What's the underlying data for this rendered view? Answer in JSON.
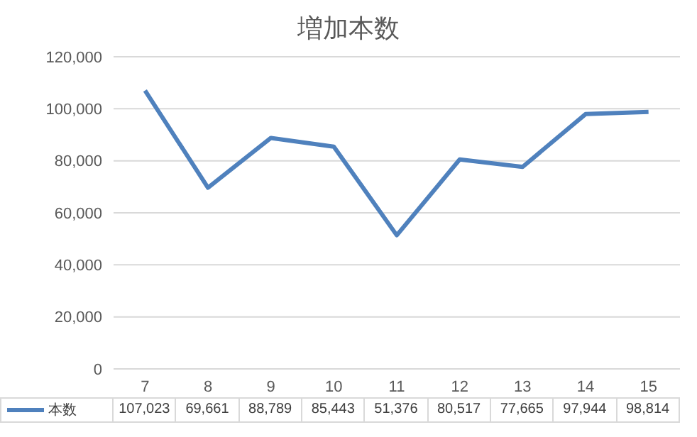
{
  "chart_data": {
    "type": "line",
    "title": "増加本数",
    "categories": [
      "7",
      "8",
      "9",
      "10",
      "11",
      "12",
      "13",
      "14",
      "15"
    ],
    "series": [
      {
        "name": "本数",
        "color": "#4f81bd",
        "values": [
          107023,
          69661,
          88789,
          85443,
          51376,
          80517,
          77665,
          97944,
          98814
        ],
        "value_labels": [
          "107,023",
          "69,661",
          "88,789",
          "85,443",
          "51,376",
          "80,517",
          "77,665",
          "97,944",
          "98,814"
        ]
      }
    ],
    "ylim": [
      0,
      120000
    ],
    "yticks": [
      {
        "value": 0,
        "label": "0"
      },
      {
        "value": 20000,
        "label": "20,000"
      },
      {
        "value": 40000,
        "label": "40,000"
      },
      {
        "value": 60000,
        "label": "60,000"
      },
      {
        "value": 80000,
        "label": "80,000"
      },
      {
        "value": 100000,
        "label": "100,000"
      },
      {
        "value": 120000,
        "label": "120,000"
      }
    ],
    "grid": "y",
    "legend": "bottom left",
    "marker": "none",
    "line_style": "solid"
  }
}
